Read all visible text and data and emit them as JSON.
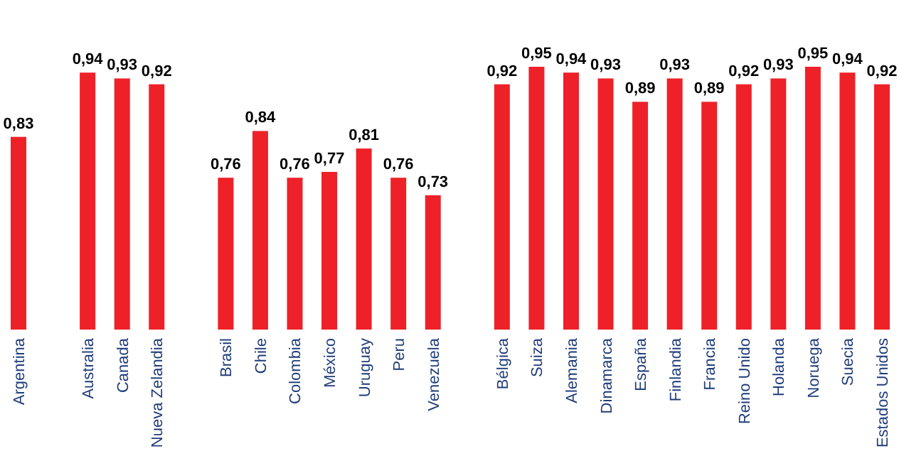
{
  "chart_data": {
    "type": "bar",
    "categories": [
      "Argentina",
      null,
      "Australia",
      "Canada",
      "Nueva Zelandia",
      null,
      "Brasil",
      "Chile",
      "Colombia",
      "México",
      "Uruguay",
      "Peru",
      "Venezuela",
      null,
      "Bélgica",
      "Suiza",
      "Alemania",
      "Dinamarca",
      "España",
      "Finlandia",
      "Francia",
      "Reino Unido",
      "Holanda",
      "Noruega",
      "Suecia",
      "Estados Unidos"
    ],
    "values": [
      0.83,
      null,
      0.94,
      0.93,
      0.92,
      null,
      0.76,
      0.84,
      0.76,
      0.77,
      0.81,
      0.76,
      0.73,
      null,
      0.92,
      0.95,
      0.94,
      0.93,
      0.89,
      0.93,
      0.89,
      0.92,
      0.93,
      0.95,
      0.94,
      0.92
    ],
    "value_labels": [
      "0,83",
      null,
      "0,94",
      "0,93",
      "0,92",
      null,
      "0,76",
      "0,84",
      "0,76",
      "0,77",
      "0,81",
      "0,76",
      "0,73",
      null,
      "0,92",
      "0,95",
      "0,94",
      "0,93",
      "0,89",
      "0,93",
      "0,89",
      "0,92",
      "0,93",
      "0,95",
      "0,94",
      "0,92"
    ],
    "color": "#ee2128",
    "ylim": [
      0.5,
      0.95
    ]
  }
}
